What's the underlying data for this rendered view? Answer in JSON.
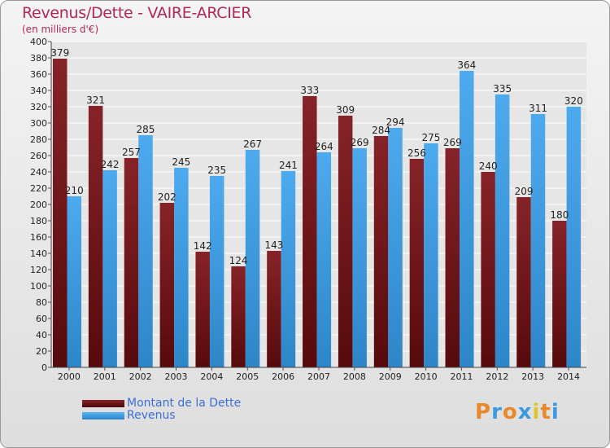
{
  "title": "Revenus/Dette - VAIRE-ARCIER",
  "subtitle": "(en milliers d'€)",
  "logo_text": "Proxiti",
  "colors": {
    "debt": "#7a1a1e",
    "revenue": "#3d9ae0",
    "title": "#b0285a",
    "legend_text": "#3a6fd8"
  },
  "chart_data": {
    "type": "bar",
    "categories": [
      "2000",
      "2001",
      "2002",
      "2003",
      "2004",
      "2005",
      "2006",
      "2007",
      "2008",
      "2009",
      "2010",
      "2011",
      "2012",
      "2013",
      "2014"
    ],
    "series": [
      {
        "name": "Montant de la Dette",
        "values": [
          379,
          321,
          257,
          202,
          142,
          124,
          143,
          333,
          309,
          284,
          256,
          269,
          240,
          209,
          180
        ]
      },
      {
        "name": "Revenus",
        "values": [
          210,
          242,
          285,
          245,
          235,
          267,
          241,
          264,
          269,
          294,
          275,
          364,
          335,
          311,
          320
        ]
      }
    ],
    "ylim": [
      0,
      400
    ],
    "yticks": [
      0,
      20,
      40,
      60,
      80,
      100,
      120,
      140,
      160,
      180,
      200,
      220,
      240,
      260,
      280,
      300,
      320,
      340,
      360,
      380,
      400
    ],
    "grid": true,
    "legend": "bottom-left"
  }
}
